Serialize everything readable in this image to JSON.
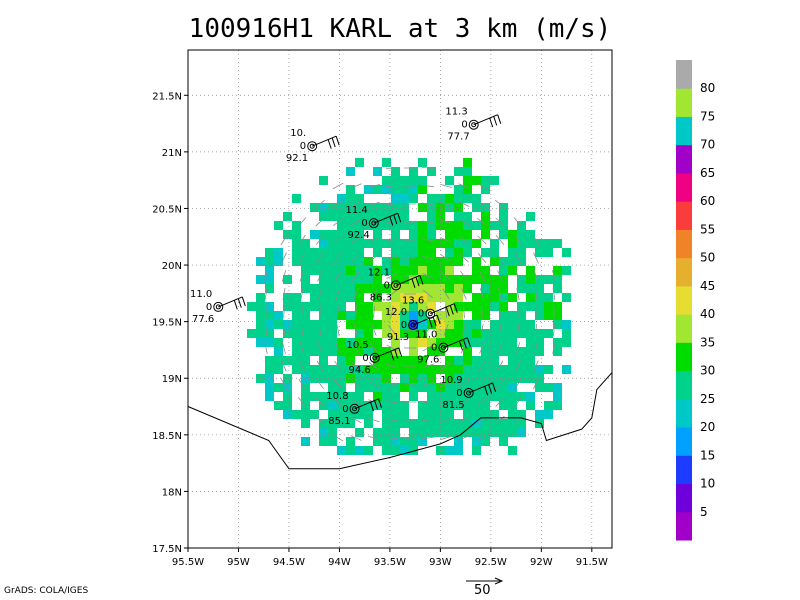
{
  "title": "100916H1 KARL at 3 km (m/s)",
  "credit": "GrADS: COLA/IGES",
  "reference_vector_label": "50",
  "map": {
    "lat_labels": [
      "21.5N",
      "21N",
      "20.5N",
      "20N",
      "19.5N",
      "19N",
      "18.5N",
      "18N",
      "17.5N"
    ],
    "lat_values": [
      21.5,
      21.0,
      20.5,
      20.0,
      19.5,
      19.0,
      18.5,
      18.0,
      17.5
    ],
    "lon_labels": [
      "95.5W",
      "95W",
      "94.5W",
      "94W",
      "93.5W",
      "93W",
      "92.5W",
      "92W",
      "91.5W"
    ],
    "lon_values": [
      -95.5,
      -95.0,
      -94.5,
      -94.0,
      -93.5,
      -93.0,
      -92.5,
      -92.0,
      -91.5
    ],
    "lon_range": [
      -95.5,
      -91.3
    ],
    "lat_range": [
      17.5,
      21.9
    ],
    "storm_center": {
      "lon": -93.3,
      "lat": 19.55
    },
    "coastline": [
      [
        -95.5,
        18.75
      ],
      [
        -94.7,
        18.45
      ],
      [
        -94.5,
        18.2
      ],
      [
        -94.0,
        18.2
      ],
      [
        -93.5,
        18.3
      ],
      [
        -93.0,
        18.42
      ],
      [
        -92.8,
        18.5
      ],
      [
        -92.6,
        18.65
      ],
      [
        -92.2,
        18.65
      ],
      [
        -92.0,
        18.6
      ],
      [
        -91.95,
        18.45
      ],
      [
        -91.6,
        18.55
      ],
      [
        -91.5,
        18.65
      ],
      [
        -91.45,
        18.9
      ],
      [
        -91.3,
        19.05
      ]
    ],
    "gridded_wind": {
      "vmax": 45,
      "rmax_deg": 0.18,
      "decay": 0.85,
      "background": 22
    }
  },
  "dropsondes": [
    {
      "lon": -95.2,
      "lat": 19.63,
      "t": "11.0",
      "m": "0",
      "b": "77.6"
    },
    {
      "lon": -94.27,
      "lat": 21.05,
      "t": "10.",
      "m": "0",
      "b": "92.1"
    },
    {
      "lon": -93.66,
      "lat": 20.37,
      "t": "11.4",
      "m": "0",
      "b": "92.4"
    },
    {
      "lon": -92.67,
      "lat": 21.24,
      "t": "11.3",
      "m": "0",
      "b": "77.7"
    },
    {
      "lon": -93.44,
      "lat": 19.82,
      "t": "12.1",
      "m": "0",
      "b": "86.3"
    },
    {
      "lon": -93.1,
      "lat": 19.57,
      "t": "13.6",
      "m": "0",
      "b": ""
    },
    {
      "lon": -93.27,
      "lat": 19.47,
      "t": "12.0",
      "m": "0",
      "b": "91.3"
    },
    {
      "lon": -92.97,
      "lat": 19.27,
      "t": "11.0",
      "m": "0",
      "b": "97.6"
    },
    {
      "lon": -93.65,
      "lat": 19.18,
      "t": "10.5",
      "m": "0",
      "b": "94.6"
    },
    {
      "lon": -93.85,
      "lat": 18.73,
      "t": "10.8",
      "m": "0",
      "b": "85.1"
    },
    {
      "lon": -92.72,
      "lat": 18.87,
      "t": "10.9",
      "m": "0",
      "b": "81.5"
    }
  ],
  "colorbar": {
    "labels": [
      "5",
      "10",
      "15",
      "20",
      "25",
      "30",
      "35",
      "40",
      "45",
      "50",
      "55",
      "60",
      "65",
      "70",
      "75",
      "80"
    ],
    "colors": [
      "#a000c8",
      "#6e00dc",
      "#1e3cff",
      "#00a0ff",
      "#00c8c8",
      "#00d28c",
      "#00dc00",
      "#a0e632",
      "#e6dc32",
      "#e6af2d",
      "#f08228",
      "#fa3c3c",
      "#f00082",
      "#a000c8",
      "#00c8c8",
      "#a0e632",
      "#aaaaaa"
    ]
  }
}
